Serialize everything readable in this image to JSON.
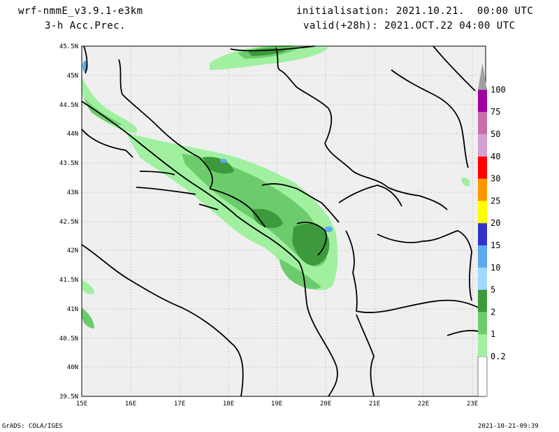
{
  "header": {
    "model": "wrf-nmmE_v3.9.1-e3km",
    "product": "3-h Acc.Prec.",
    "init": "initialisation: 2021.10.21.  00:00 UTC",
    "valid": "valid(+28h): 2021.OCT.22 04:00 UTC"
  },
  "footer": {
    "credit": "GrADS: COLA/IGES",
    "timestamp": "2021-10-21-09:39"
  },
  "axes": {
    "lat_labels": [
      "45.5N",
      "45N",
      "44.5N",
      "44N",
      "43.5N",
      "43N",
      "42.5N",
      "42N",
      "41.5N",
      "41N",
      "40.5N",
      "40N",
      "39.5N"
    ],
    "lon_labels": [
      "15E",
      "16E",
      "17E",
      "18E",
      "19E",
      "20E",
      "21E",
      "22E",
      "23E"
    ]
  },
  "colorbar": {
    "levels": [
      "0.2",
      "1",
      "2",
      "5",
      "10",
      "15",
      "20",
      "25",
      "30",
      "40",
      "50",
      "75",
      "100"
    ],
    "colors": [
      "#a0f0a0",
      "#6ccc6c",
      "#3c9a3c",
      "#a0d8ff",
      "#5aaaf0",
      "#3232c8",
      "#ffff00",
      "#ff9600",
      "#ff0000",
      "#d2a0d2",
      "#c86eaa",
      "#a000a0",
      "#a0a0a0"
    ]
  },
  "colors": {
    "land": "#efefef",
    "border": "#000000",
    "grid": "#aaaaaa"
  }
}
